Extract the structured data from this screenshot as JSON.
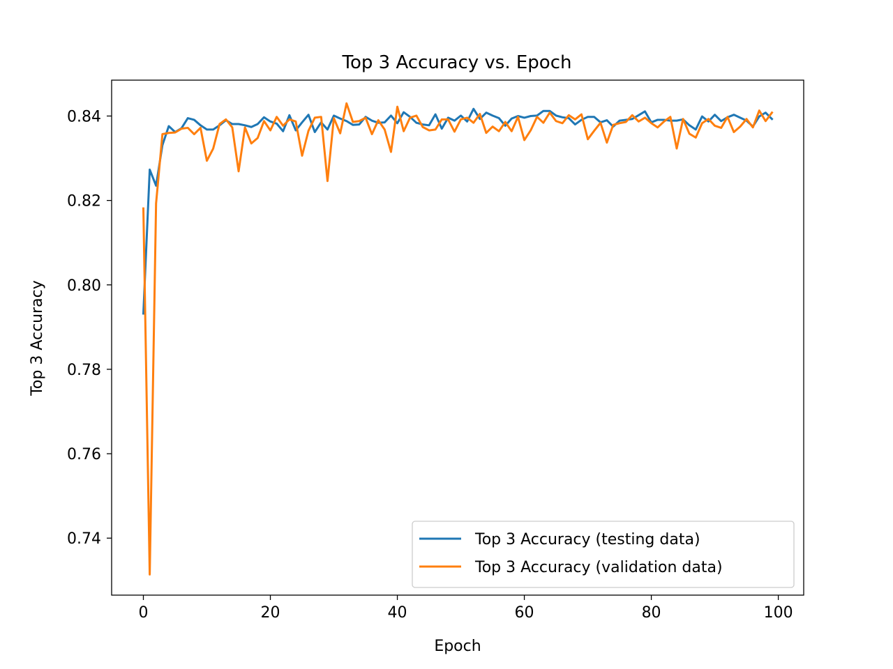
{
  "chart_data": {
    "type": "line",
    "title": "Top 3 Accuracy vs. Epoch",
    "xlabel": "Epoch",
    "ylabel": "Top 3 Accuracy",
    "xlim": [
      -5,
      104
    ],
    "ylim": [
      0.7265,
      0.8485
    ],
    "xticks": [
      0,
      20,
      40,
      60,
      80,
      100
    ],
    "xtick_labels": [
      "0",
      "20",
      "40",
      "60",
      "80",
      "100"
    ],
    "yticks": [
      0.74,
      0.76,
      0.78,
      0.8,
      0.82,
      0.84
    ],
    "ytick_labels": [
      "0.74",
      "0.76",
      "0.78",
      "0.80",
      "0.82",
      "0.84"
    ],
    "grid": false,
    "legend_position": "lower-right",
    "series": [
      {
        "name": "Top 3 Accuracy (testing data)",
        "color": "#1f77b4",
        "x": [
          0,
          1,
          2,
          3,
          4,
          5,
          6,
          7,
          8,
          9,
          10,
          11,
          12,
          13,
          14,
          15,
          16,
          17,
          18,
          19,
          20,
          21,
          22,
          23,
          24,
          25,
          26,
          27,
          28,
          29,
          30,
          31,
          32,
          33,
          34,
          35,
          36,
          37,
          38,
          39,
          40,
          41,
          42,
          43,
          44,
          45,
          46,
          47,
          48,
          49,
          50,
          51,
          52,
          53,
          54,
          55,
          56,
          57,
          58,
          59,
          60,
          61,
          62,
          63,
          64,
          65,
          66,
          67,
          68,
          69,
          70,
          71,
          72,
          73,
          74,
          75,
          76,
          77,
          78,
          79,
          80,
          81,
          82,
          83,
          84,
          85,
          86,
          87,
          88,
          89,
          90,
          91,
          92,
          93,
          94,
          95,
          96,
          97,
          98,
          99
        ],
        "values": [
          0.7932,
          0.8273,
          0.8235,
          0.8331,
          0.8376,
          0.8362,
          0.8371,
          0.8395,
          0.8391,
          0.8378,
          0.8368,
          0.8368,
          0.8378,
          0.839,
          0.8381,
          0.8381,
          0.8378,
          0.8374,
          0.8381,
          0.8397,
          0.8387,
          0.8382,
          0.8364,
          0.8402,
          0.8366,
          0.8385,
          0.8403,
          0.8362,
          0.8385,
          0.8368,
          0.8401,
          0.8394,
          0.8388,
          0.8379,
          0.838,
          0.8398,
          0.8389,
          0.8384,
          0.8385,
          0.8401,
          0.8383,
          0.8409,
          0.8398,
          0.8384,
          0.838,
          0.8378,
          0.8404,
          0.837,
          0.8396,
          0.8389,
          0.8401,
          0.8387,
          0.8417,
          0.8393,
          0.8408,
          0.8401,
          0.8395,
          0.8377,
          0.8394,
          0.84,
          0.8396,
          0.84,
          0.8401,
          0.8412,
          0.8412,
          0.8401,
          0.8397,
          0.8395,
          0.838,
          0.8391,
          0.8398,
          0.8398,
          0.8385,
          0.839,
          0.8375,
          0.8389,
          0.8391,
          0.8393,
          0.8402,
          0.8411,
          0.8385,
          0.8391,
          0.8391,
          0.8389,
          0.8389,
          0.8392,
          0.8378,
          0.8368,
          0.8399,
          0.8387,
          0.8403,
          0.8388,
          0.8397,
          0.8403,
          0.8396,
          0.8389,
          0.8375,
          0.8399,
          0.8408,
          0.8393
        ]
      },
      {
        "name": "Top 3 Accuracy (validation data)",
        "color": "#ff7f0e",
        "x": [
          0,
          1,
          2,
          3,
          4,
          5,
          6,
          7,
          8,
          9,
          10,
          11,
          12,
          13,
          14,
          15,
          16,
          17,
          18,
          19,
          20,
          21,
          22,
          23,
          24,
          25,
          26,
          27,
          28,
          29,
          30,
          31,
          32,
          33,
          34,
          35,
          36,
          37,
          38,
          39,
          40,
          41,
          42,
          43,
          44,
          45,
          46,
          47,
          48,
          49,
          50,
          51,
          52,
          53,
          54,
          55,
          56,
          57,
          58,
          59,
          60,
          61,
          62,
          63,
          64,
          65,
          66,
          67,
          68,
          69,
          70,
          71,
          72,
          73,
          74,
          75,
          76,
          77,
          78,
          79,
          80,
          81,
          82,
          83,
          84,
          85,
          86,
          87,
          88,
          89,
          90,
          91,
          92,
          93,
          94,
          95,
          96,
          97,
          98,
          99
        ],
        "values": [
          0.8181,
          0.7314,
          0.8193,
          0.8357,
          0.836,
          0.8361,
          0.837,
          0.8372,
          0.8357,
          0.8372,
          0.8294,
          0.8323,
          0.8381,
          0.8392,
          0.8373,
          0.8269,
          0.8373,
          0.8335,
          0.8348,
          0.8388,
          0.8366,
          0.8398,
          0.8377,
          0.8392,
          0.8387,
          0.8306,
          0.8365,
          0.8396,
          0.8398,
          0.8246,
          0.8395,
          0.8359,
          0.843,
          0.8386,
          0.8388,
          0.8396,
          0.8357,
          0.839,
          0.8368,
          0.8315,
          0.8422,
          0.8364,
          0.8396,
          0.8401,
          0.8374,
          0.8366,
          0.8368,
          0.8392,
          0.8392,
          0.8363,
          0.8392,
          0.8396,
          0.8384,
          0.8405,
          0.836,
          0.8375,
          0.8364,
          0.8386,
          0.8364,
          0.8398,
          0.8343,
          0.8366,
          0.8398,
          0.8384,
          0.8408,
          0.8388,
          0.8383,
          0.8402,
          0.8392,
          0.8404,
          0.8345,
          0.8365,
          0.8384,
          0.8337,
          0.8379,
          0.8383,
          0.8386,
          0.8402,
          0.8387,
          0.8396,
          0.8383,
          0.8373,
          0.8387,
          0.8398,
          0.8323,
          0.8393,
          0.8358,
          0.8349,
          0.8383,
          0.8393,
          0.8377,
          0.8372,
          0.8398,
          0.8362,
          0.8375,
          0.8393,
          0.8373,
          0.8413,
          0.8388,
          0.8408
        ]
      }
    ]
  }
}
